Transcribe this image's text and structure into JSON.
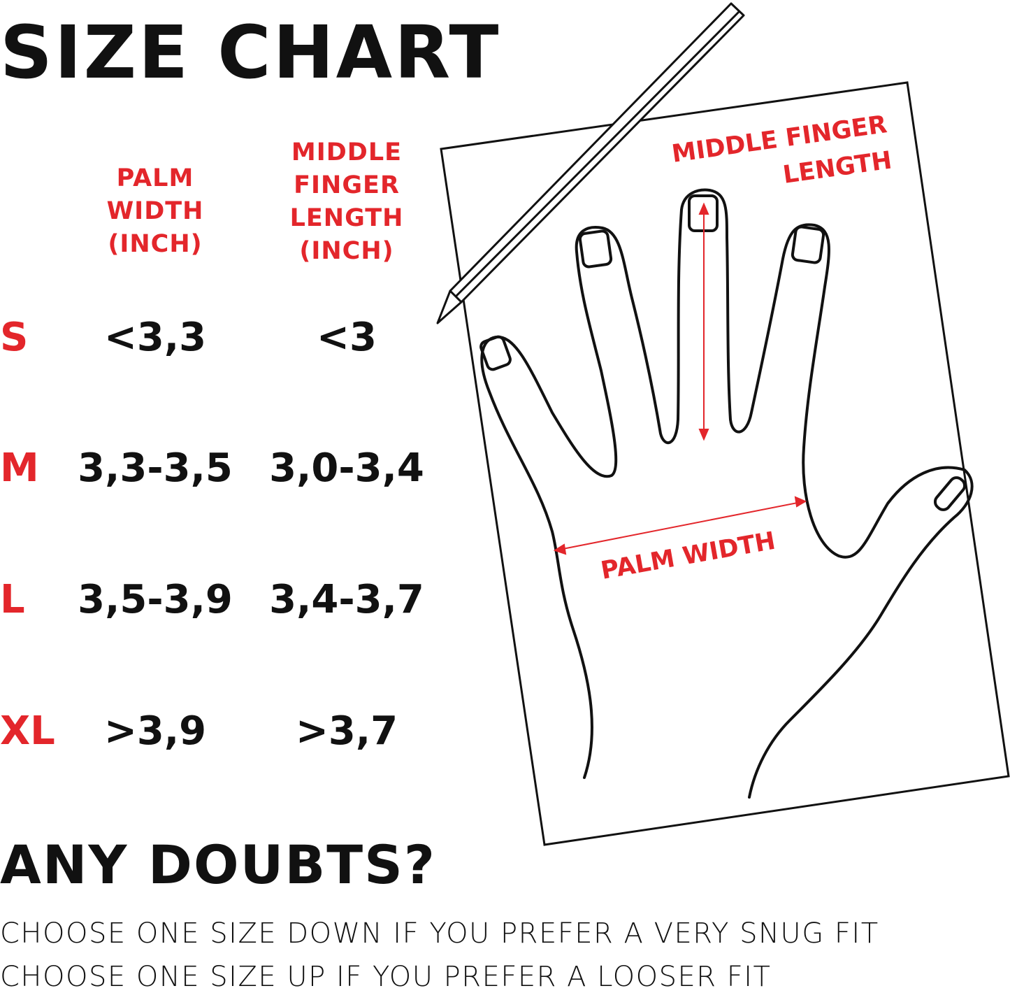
{
  "title": "SIZE CHART",
  "table": {
    "headers": {
      "palm": [
        "PALM",
        "WIDTH",
        "(INCH)"
      ],
      "finger": [
        "MIDDLE",
        "FINGER",
        "LENGTH",
        "(INCH)"
      ]
    },
    "rows": [
      {
        "size": "S",
        "palm": "<3,3",
        "finger": "<3"
      },
      {
        "size": "M",
        "palm": "3,3-3,5",
        "finger": "3,0-3,4"
      },
      {
        "size": "L",
        "palm": "3,5-3,9",
        "finger": "3,4-3,7"
      },
      {
        "size": "XL",
        "palm": ">3,9",
        "finger": ">3,7"
      }
    ]
  },
  "diagram": {
    "finger_label": [
      "MIDDLE FINGER",
      "LENGTH"
    ],
    "palm_label": "PALM WIDTH"
  },
  "doubts": {
    "heading": "ANY DOUBTS?",
    "tips": [
      "CHOOSE ONE SIZE DOWN IF YOU PREFER A VERY SNUG FIT",
      "CHOOSE ONE SIZE UP IF YOU PREFER A LOOSER FIT"
    ]
  },
  "colors": {
    "accent": "#e3262b",
    "text": "#111111"
  }
}
